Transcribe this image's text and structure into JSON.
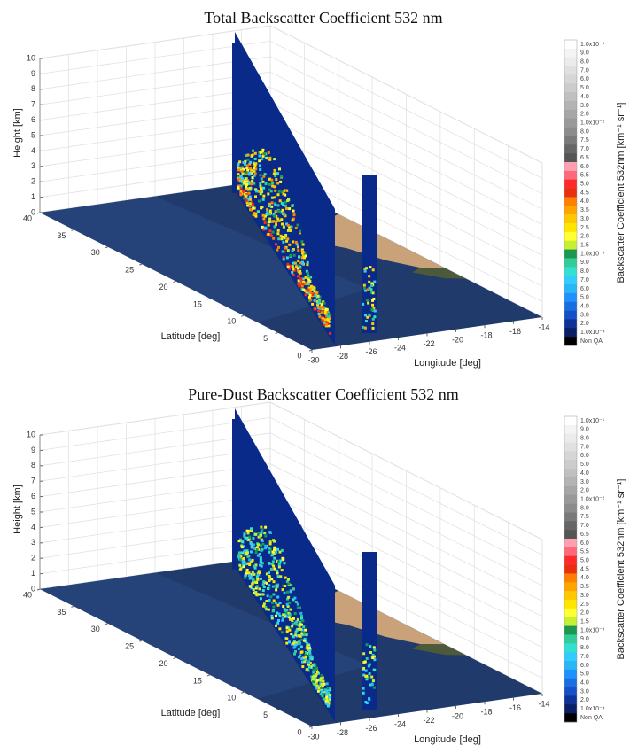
{
  "chart_data": [
    {
      "type": "curtain3d",
      "title": "Total Backscatter Coefficient 532 nm",
      "xlabel": "Longitude [deg]",
      "ylabel": "Latitude  [deg]",
      "zlabel": "Height [km]",
      "xlim": [
        -30,
        -14
      ],
      "xticks": [
        -30,
        -28,
        -26,
        -24,
        -22,
        -20,
        -18,
        -16,
        -14
      ],
      "ylim": [
        0,
        40
      ],
      "yticks": [
        0,
        5,
        10,
        15,
        20,
        25,
        30,
        35,
        40
      ],
      "zlim": [
        0,
        10
      ],
      "zticks": [
        0,
        1,
        2,
        3,
        4,
        5,
        6,
        7,
        8,
        9,
        10
      ],
      "colorbar": {
        "label": "Backscatter Coefficient 532nm [km⁻¹ sr⁻¹]",
        "tick_labels": [
          "1.0x10⁻¹",
          "9.0",
          "8.0",
          "7.0",
          "6.0",
          "5.0",
          "4.0",
          "3.0",
          "2.0",
          "1.0x10⁻²",
          "8.0",
          "7.5",
          "7.0",
          "6.5",
          "6.0",
          "5.5",
          "5.0",
          "4.5",
          "4.0",
          "3.5",
          "3.0",
          "2.5",
          "2.0",
          "1.5",
          "1.0x10⁻³",
          "9.0",
          "8.0",
          "7.0",
          "6.0",
          "5.0",
          "4.0",
          "3.0",
          "2.0",
          "1.0x10⁻⁴",
          "Non QA"
        ],
        "colors": [
          "#ffffff",
          "#f4f4f4",
          "#ebebeb",
          "#e0e0e0",
          "#d6d6d6",
          "#cccccc",
          "#c0c0c0",
          "#b3b3b3",
          "#a6a6a6",
          "#999999",
          "#8c8c8c",
          "#7a7a7a",
          "#666666",
          "#555555",
          "#ff9fb0",
          "#ff6a7a",
          "#ff2a2a",
          "#e83010",
          "#ff7f00",
          "#ffa500",
          "#ffc800",
          "#ffe600",
          "#ffff33",
          "#c8f032",
          "#1a9850",
          "#33cc99",
          "#33e0d0",
          "#33ccff",
          "#29b6f6",
          "#1e90ff",
          "#1a6fe0",
          "#1450c8",
          "#0d3399",
          "#0a1f66",
          "#000000"
        ]
      }
    },
    {
      "type": "curtain3d",
      "title": "Pure-Dust Backscatter Coefficient 532 nm",
      "xlabel": "Longitude [deg]",
      "ylabel": "Latitude  [deg]",
      "zlabel": "Height [km]",
      "xlim": [
        -30,
        -14
      ],
      "xticks": [
        -30,
        -28,
        -26,
        -24,
        -22,
        -20,
        -18,
        -16,
        -14
      ],
      "ylim": [
        0,
        40
      ],
      "yticks": [
        0,
        5,
        10,
        15,
        20,
        25,
        30,
        35,
        40
      ],
      "zlim": [
        0,
        10
      ],
      "zticks": [
        0,
        1,
        2,
        3,
        4,
        5,
        6,
        7,
        8,
        9,
        10
      ],
      "colorbar": {
        "label": "Backscatter Coefficient 532nm [km⁻¹ sr⁻¹]",
        "tick_labels": [
          "1.0x10⁻¹",
          "9.0",
          "8.0",
          "7.0",
          "6.0",
          "5.0",
          "4.0",
          "3.0",
          "2.0",
          "1.0x10⁻²",
          "8.0",
          "7.5",
          "7.0",
          "6.5",
          "6.0",
          "5.5",
          "5.0",
          "4.5",
          "4.0",
          "3.5",
          "3.0",
          "2.5",
          "2.0",
          "1.5",
          "1.0x10⁻³",
          "9.0",
          "8.0",
          "7.0",
          "6.0",
          "5.0",
          "4.0",
          "3.0",
          "2.0",
          "1.0x10⁻⁴",
          "Non QA"
        ],
        "colors": [
          "#ffffff",
          "#f4f4f4",
          "#ebebeb",
          "#e0e0e0",
          "#d6d6d6",
          "#cccccc",
          "#c0c0c0",
          "#b3b3b3",
          "#a6a6a6",
          "#999999",
          "#8c8c8c",
          "#7a7a7a",
          "#666666",
          "#555555",
          "#ff9fb0",
          "#ff6a7a",
          "#ff2a2a",
          "#e83010",
          "#ff7f00",
          "#ffa500",
          "#ffc800",
          "#ffe600",
          "#ffff33",
          "#c8f032",
          "#1a9850",
          "#33cc99",
          "#33e0d0",
          "#33ccff",
          "#29b6f6",
          "#1e90ff",
          "#1a6fe0",
          "#1450c8",
          "#0d3399",
          "#0a1f66",
          "#000000"
        ]
      }
    }
  ]
}
